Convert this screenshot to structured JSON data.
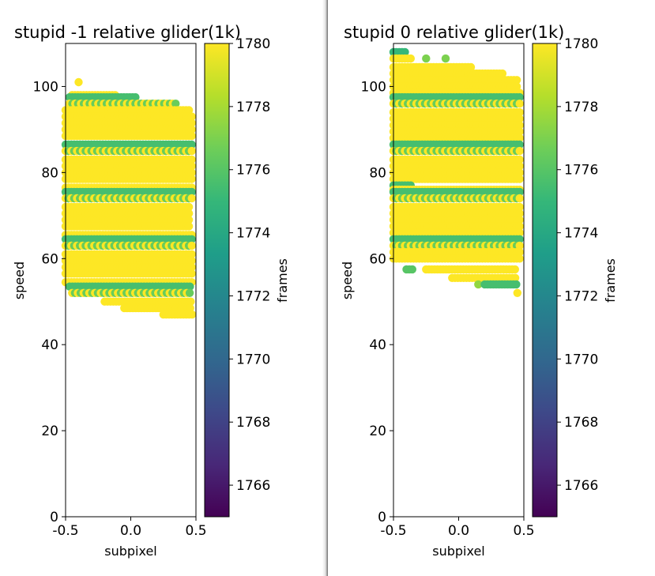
{
  "colormap": {
    "name": "viridis",
    "stops": [
      "#440154",
      "#482878",
      "#3e4989",
      "#31688e",
      "#26828e",
      "#1f9e89",
      "#35b779",
      "#6ece58",
      "#b5de2b",
      "#fde725"
    ]
  },
  "chart_data": [
    {
      "type": "scatter",
      "title": "stupid -1 relative glider(1k)",
      "xlabel": "subpixel",
      "ylabel": "speed",
      "xlim": [
        -0.5,
        0.5
      ],
      "ylim": [
        0,
        110
      ],
      "xticks": [
        -0.5,
        0.0,
        0.5
      ],
      "xtick_labels": [
        "-0.5",
        "0.0",
        "0.5"
      ],
      "yticks": [
        0,
        20,
        40,
        60,
        80,
        100
      ],
      "ytick_labels": [
        "0",
        "20",
        "40",
        "60",
        "80",
        "100"
      ],
      "colorbar": {
        "label": "frames",
        "range": [
          1765,
          1780
        ],
        "ticks": [
          1766,
          1768,
          1770,
          1772,
          1774,
          1776,
          1778,
          1780
        ],
        "tick_labels": [
          "1766",
          "1768",
          "1770",
          "1772",
          "1774",
          "1776",
          "1778",
          "1780"
        ]
      },
      "rows": [
        {
          "y": 101,
          "xmin": -0.4,
          "xmax": -0.4,
          "value": 1780
        },
        {
          "y": 98,
          "xmin": -0.45,
          "xmax": -0.1,
          "value": 1780
        },
        {
          "y": 97.5,
          "xmin": -0.47,
          "xmax": 0.05,
          "value": 1775.5
        },
        {
          "y": 96,
          "xmin": -0.47,
          "xmax": 0.35,
          "value": 1780,
          "alt_value": 1776.5,
          "alt_every": 2
        },
        {
          "y": 94.5,
          "xmin": -0.5,
          "xmax": 0.45,
          "value": 1780
        },
        {
          "y": 93,
          "xmin": -0.5,
          "xmax": 0.47,
          "value": 1780
        },
        {
          "y": 91.5,
          "xmin": -0.5,
          "xmax": 0.47,
          "value": 1780
        },
        {
          "y": 90,
          "xmin": -0.5,
          "xmax": 0.47,
          "value": 1780
        },
        {
          "y": 88.5,
          "xmin": -0.5,
          "xmax": 0.47,
          "value": 1780
        },
        {
          "y": 86.5,
          "xmin": -0.5,
          "xmax": 0.47,
          "value": 1775.5
        },
        {
          "y": 85,
          "xmin": -0.5,
          "xmax": 0.47,
          "value": 1780,
          "alt_value": 1776.5,
          "alt_every": 2
        },
        {
          "y": 83,
          "xmin": -0.5,
          "xmax": 0.47,
          "value": 1780
        },
        {
          "y": 81.5,
          "xmin": -0.5,
          "xmax": 0.47,
          "value": 1780
        },
        {
          "y": 80,
          "xmin": -0.5,
          "xmax": 0.47,
          "value": 1780
        },
        {
          "y": 78.5,
          "xmin": -0.5,
          "xmax": 0.47,
          "value": 1780
        },
        {
          "y": 76.5,
          "xmin": -0.5,
          "xmax": 0.47,
          "value": 1780
        },
        {
          "y": 75.5,
          "xmin": -0.5,
          "xmax": 0.47,
          "value": 1775.5
        },
        {
          "y": 74,
          "xmin": -0.5,
          "xmax": 0.47,
          "value": 1780,
          "alt_value": 1776.5,
          "alt_every": 2
        },
        {
          "y": 72,
          "xmin": -0.5,
          "xmax": 0.45,
          "value": 1780
        },
        {
          "y": 70.5,
          "xmin": -0.5,
          "xmax": 0.45,
          "value": 1780
        },
        {
          "y": 69,
          "xmin": -0.5,
          "xmax": 0.45,
          "value": 1780
        },
        {
          "y": 67.5,
          "xmin": -0.5,
          "xmax": 0.45,
          "value": 1780
        },
        {
          "y": 65.5,
          "xmin": -0.5,
          "xmax": 0.47,
          "value": 1780
        },
        {
          "y": 64.5,
          "xmin": -0.5,
          "xmax": 0.47,
          "value": 1775.5
        },
        {
          "y": 63,
          "xmin": -0.5,
          "xmax": 0.47,
          "value": 1780,
          "alt_value": 1776.5,
          "alt_every": 2
        },
        {
          "y": 61,
          "xmin": -0.5,
          "xmax": 0.47,
          "value": 1780
        },
        {
          "y": 59.5,
          "xmin": -0.5,
          "xmax": 0.47,
          "value": 1780
        },
        {
          "y": 58,
          "xmin": -0.5,
          "xmax": 0.47,
          "value": 1780
        },
        {
          "y": 56.5,
          "xmin": -0.5,
          "xmax": 0.47,
          "value": 1780
        },
        {
          "y": 54.5,
          "xmin": -0.5,
          "xmax": 0.47,
          "value": 1780
        },
        {
          "y": 53.5,
          "xmin": -0.47,
          "xmax": 0.47,
          "value": 1775.5
        },
        {
          "y": 52,
          "xmin": -0.45,
          "xmax": 0.47,
          "value": 1780,
          "alt_value": 1776.5,
          "alt_every": 2
        },
        {
          "y": 50,
          "xmin": -0.2,
          "xmax": 0.47,
          "value": 1780
        },
        {
          "y": 48.5,
          "xmin": -0.05,
          "xmax": 0.47,
          "value": 1780
        },
        {
          "y": 47,
          "xmin": 0.25,
          "xmax": 0.47,
          "value": 1780
        }
      ]
    },
    {
      "type": "scatter",
      "title": "stupid 0 relative glider(1k)",
      "xlabel": "subpixel",
      "ylabel": "speed",
      "xlim": [
        -0.5,
        0.5
      ],
      "ylim": [
        0,
        110
      ],
      "xticks": [
        -0.5,
        0.0,
        0.5
      ],
      "xtick_labels": [
        "-0.5",
        "0.0",
        "0.5"
      ],
      "yticks": [
        0,
        20,
        40,
        60,
        80,
        100
      ],
      "ytick_labels": [
        "0",
        "20",
        "40",
        "60",
        "80",
        "100"
      ],
      "colorbar": {
        "label": "frames",
        "range": [
          1765,
          1780
        ],
        "ticks": [
          1766,
          1768,
          1770,
          1772,
          1774,
          1776,
          1778,
          1780
        ],
        "tick_labels": [
          "1766",
          "1768",
          "1770",
          "1772",
          "1774",
          "1776",
          "1778",
          "1780"
        ]
      },
      "rows": [
        {
          "y": 108,
          "xmin": -0.5,
          "xmax": -0.4,
          "value": 1775
        },
        {
          "y": 106.5,
          "xmin": -0.5,
          "xmax": -0.35,
          "value": 1780
        },
        {
          "y": 106.5,
          "xmin": -0.25,
          "xmax": -0.25,
          "value": 1777
        },
        {
          "y": 106.5,
          "xmin": -0.1,
          "xmax": -0.1,
          "value": 1777
        },
        {
          "y": 104.5,
          "xmin": -0.5,
          "xmax": 0.1,
          "value": 1780
        },
        {
          "y": 103,
          "xmin": -0.5,
          "xmax": 0.35,
          "value": 1780
        },
        {
          "y": 101.5,
          "xmin": -0.5,
          "xmax": 0.45,
          "value": 1780
        },
        {
          "y": 100,
          "xmin": -0.5,
          "xmax": 0.45,
          "value": 1780
        },
        {
          "y": 98.5,
          "xmin": -0.5,
          "xmax": 0.47,
          "value": 1780
        },
        {
          "y": 97.5,
          "xmin": -0.5,
          "xmax": 0.47,
          "value": 1775.5
        },
        {
          "y": 96,
          "xmin": -0.5,
          "xmax": 0.47,
          "value": 1780,
          "alt_value": 1776.5,
          "alt_every": 2
        },
        {
          "y": 94,
          "xmin": -0.5,
          "xmax": 0.47,
          "value": 1780
        },
        {
          "y": 92.5,
          "xmin": -0.5,
          "xmax": 0.47,
          "value": 1780
        },
        {
          "y": 91,
          "xmin": -0.5,
          "xmax": 0.47,
          "value": 1780
        },
        {
          "y": 89.5,
          "xmin": -0.5,
          "xmax": 0.47,
          "value": 1780
        },
        {
          "y": 88,
          "xmin": -0.5,
          "xmax": 0.47,
          "value": 1780
        },
        {
          "y": 86.5,
          "xmin": -0.5,
          "xmax": 0.47,
          "value": 1775.5
        },
        {
          "y": 85,
          "xmin": -0.5,
          "xmax": 0.47,
          "value": 1780,
          "alt_value": 1776.5,
          "alt_every": 2
        },
        {
          "y": 83,
          "xmin": -0.5,
          "xmax": 0.47,
          "value": 1780
        },
        {
          "y": 81.5,
          "xmin": -0.5,
          "xmax": 0.47,
          "value": 1780
        },
        {
          "y": 80,
          "xmin": -0.5,
          "xmax": 0.47,
          "value": 1780
        },
        {
          "y": 78.5,
          "xmin": -0.5,
          "xmax": 0.47,
          "value": 1780
        },
        {
          "y": 77,
          "xmin": -0.5,
          "xmax": -0.35,
          "value": 1775.5
        },
        {
          "y": 76,
          "xmin": -0.5,
          "xmax": 0.47,
          "value": 1780
        },
        {
          "y": 75.5,
          "xmin": -0.5,
          "xmax": 0.47,
          "value": 1775.5
        },
        {
          "y": 74,
          "xmin": -0.5,
          "xmax": 0.47,
          "value": 1780,
          "alt_value": 1776.5,
          "alt_every": 2
        },
        {
          "y": 72,
          "xmin": -0.5,
          "xmax": 0.47,
          "value": 1780
        },
        {
          "y": 70.5,
          "xmin": -0.5,
          "xmax": 0.47,
          "value": 1780
        },
        {
          "y": 69,
          "xmin": -0.5,
          "xmax": 0.47,
          "value": 1780
        },
        {
          "y": 67.5,
          "xmin": -0.5,
          "xmax": 0.47,
          "value": 1780
        },
        {
          "y": 66,
          "xmin": -0.5,
          "xmax": 0.47,
          "value": 1780
        },
        {
          "y": 64.5,
          "xmin": -0.5,
          "xmax": 0.47,
          "value": 1775.5
        },
        {
          "y": 63,
          "xmin": -0.5,
          "xmax": 0.47,
          "value": 1780,
          "alt_value": 1776.5,
          "alt_every": 2
        },
        {
          "y": 61.5,
          "xmin": -0.5,
          "xmax": 0.47,
          "value": 1780
        },
        {
          "y": 60,
          "xmin": -0.5,
          "xmax": 0.47,
          "value": 1780
        },
        {
          "y": 57.5,
          "xmin": -0.4,
          "xmax": -0.35,
          "value": 1776
        },
        {
          "y": 57.5,
          "xmin": -0.25,
          "xmax": 0.45,
          "value": 1780
        },
        {
          "y": 55.5,
          "xmin": -0.05,
          "xmax": 0.45,
          "value": 1780
        },
        {
          "y": 54,
          "xmin": 0.15,
          "xmax": 0.15,
          "value": 1777.5
        },
        {
          "y": 54,
          "xmin": 0.2,
          "xmax": 0.45,
          "value": 1775.5
        },
        {
          "y": 52,
          "xmin": 0.45,
          "xmax": 0.45,
          "value": 1780
        }
      ]
    }
  ]
}
